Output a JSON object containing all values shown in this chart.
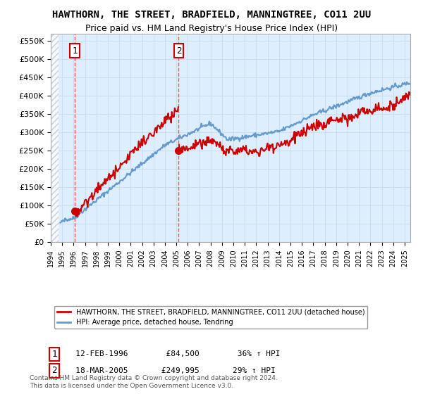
{
  "title": "HAWTHORN, THE STREET, BRADFIELD, MANNINGTREE, CO11 2UU",
  "subtitle": "Price paid vs. HM Land Registry's House Price Index (HPI)",
  "ylim": [
    0,
    570000
  ],
  "xlim_start": 1994.0,
  "xlim_end": 2025.5,
  "sale1_date": 1996.12,
  "sale1_price": 84500,
  "sale2_date": 2005.21,
  "sale2_price": 249995,
  "hpi_line_color": "#6699cc",
  "price_line_color": "#cc0000",
  "sale_marker_color": "#cc0000",
  "dashed_line_color": "#ff5555",
  "grid_color": "#ccddee",
  "bg_color": "#ddeeff",
  "legend_label1": "HAWTHORN, THE STREET, BRADFIELD, MANNINGTREE, CO11 2UU (detached house)",
  "legend_label2": "HPI: Average price, detached house, Tendring",
  "annotation1_date": "12-FEB-1996",
  "annotation1_price": "£84,500",
  "annotation1_hpi": "36% ↑ HPI",
  "annotation2_date": "18-MAR-2005",
  "annotation2_price": "£249,995",
  "annotation2_hpi": "29% ↑ HPI",
  "footer": "Contains HM Land Registry data © Crown copyright and database right 2024.\nThis data is licensed under the Open Government Licence v3.0.",
  "title_fontsize": 10,
  "subtitle_fontsize": 9
}
